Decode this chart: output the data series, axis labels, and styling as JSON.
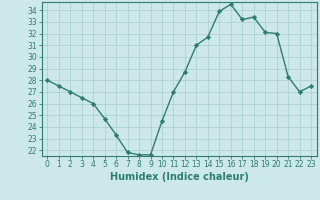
{
  "x": [
    0,
    1,
    2,
    3,
    4,
    5,
    6,
    7,
    8,
    9,
    10,
    11,
    12,
    13,
    14,
    15,
    16,
    17,
    18,
    19,
    20,
    21,
    22,
    23
  ],
  "y": [
    28,
    27.5,
    27,
    26.5,
    26,
    24.7,
    23.3,
    21.8,
    21.6,
    21.6,
    24.5,
    27,
    28.7,
    31,
    31.7,
    33.9,
    34.5,
    33.2,
    33.4,
    32.1,
    32,
    28.3,
    27,
    27.5
  ],
  "line_color": "#2e7d6e",
  "marker": "D",
  "markersize": 2.2,
  "linewidth": 1.0,
  "bg_color": "#cce8e8",
  "grid_color": "#aacece",
  "xlabel": "Humidex (Indice chaleur)",
  "ylim": [
    21.5,
    34.7
  ],
  "xlim": [
    -0.5,
    23.5
  ],
  "yticks": [
    22,
    23,
    24,
    25,
    26,
    27,
    28,
    29,
    30,
    31,
    32,
    33,
    34
  ],
  "xticks": [
    0,
    1,
    2,
    3,
    4,
    5,
    6,
    7,
    8,
    9,
    10,
    11,
    12,
    13,
    14,
    15,
    16,
    17,
    18,
    19,
    20,
    21,
    22,
    23
  ],
  "tick_fontsize": 5.5,
  "xlabel_fontsize": 7.0,
  "tick_color": "#2e7d6e",
  "axis_color": "#2e7d6e"
}
